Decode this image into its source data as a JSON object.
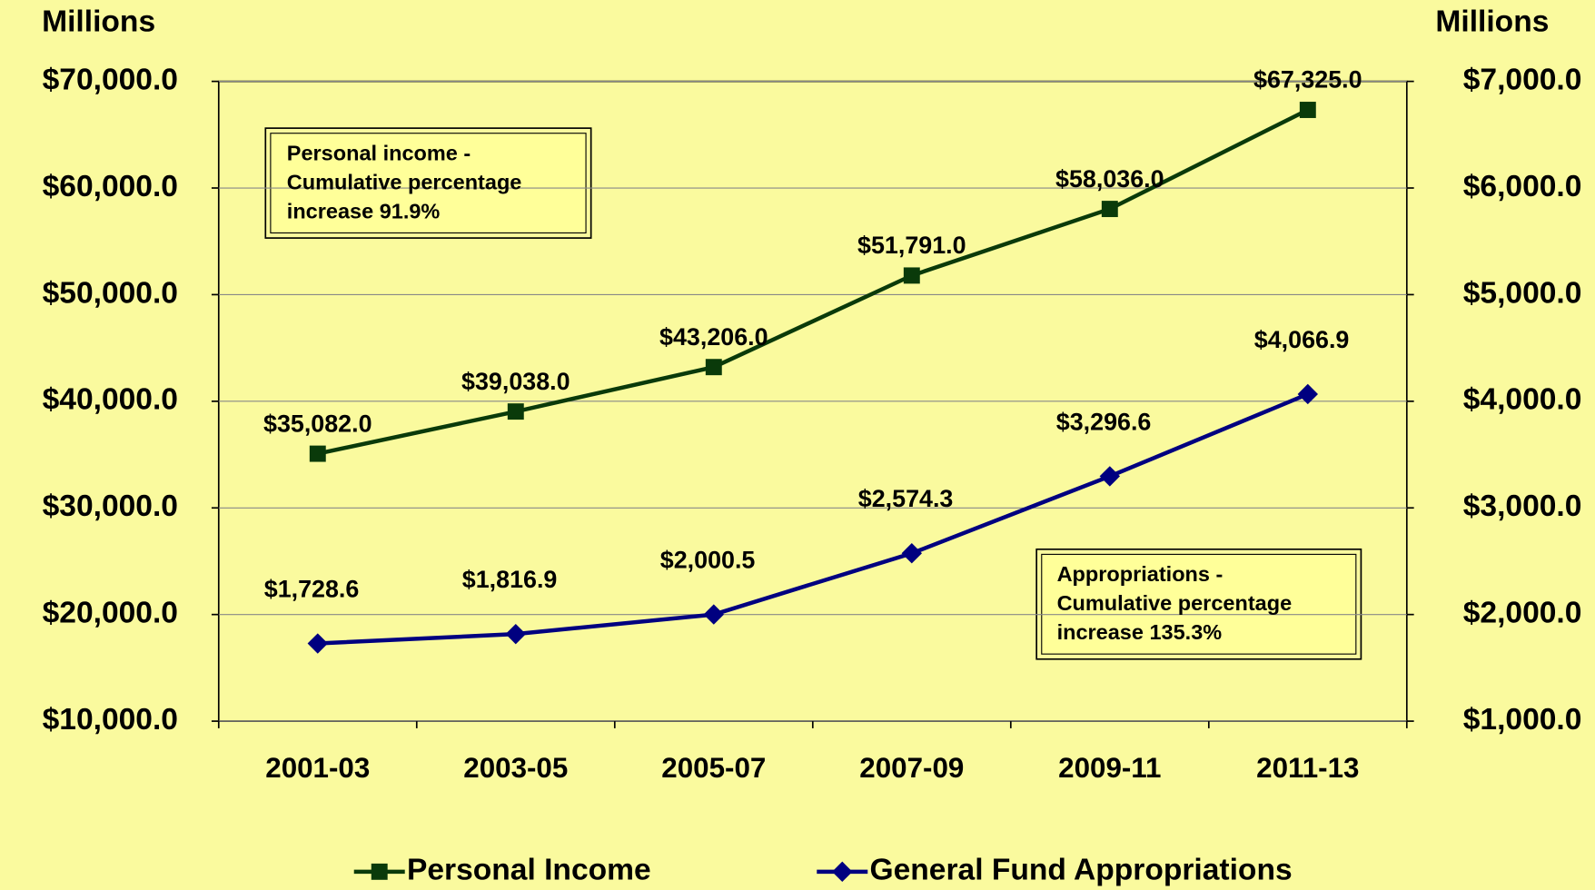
{
  "chart_data": {
    "type": "line",
    "y_label": "Millions",
    "y2_label": "Millions",
    "categories": [
      "2001-03",
      "2003-05",
      "2005-07",
      "2007-09",
      "2009-11",
      "2011-13"
    ],
    "series": [
      {
        "name": "Personal Income",
        "color": "#0a3a0a",
        "marker": "square",
        "axis": "y",
        "values": [
          35082.0,
          39038.0,
          43206.0,
          51791.0,
          58036.0,
          67325.0
        ],
        "value_labels": [
          "$35,082.0",
          "$39,038.0",
          "$43,206.0",
          "$51,791.0",
          "$58,036.0",
          "$67,325.0"
        ]
      },
      {
        "name": "General Fund Appropriations",
        "color": "#000080",
        "marker": "diamond",
        "axis": "y2",
        "values": [
          1728.6,
          1816.9,
          2000.5,
          2574.3,
          3296.6,
          4066.9
        ],
        "value_labels": [
          "$1,728.6",
          "$1,816.9",
          "$2,000.5",
          "$2,574.3",
          "$3,296.6",
          "$4,066.9"
        ]
      }
    ],
    "ylim": [
      10000,
      70000
    ],
    "yticks": [
      {
        "value": 10000,
        "label": "$10,000.0"
      },
      {
        "value": 20000,
        "label": "$20,000.0"
      },
      {
        "value": 30000,
        "label": "$30,000.0"
      },
      {
        "value": 40000,
        "label": "$40,000.0"
      },
      {
        "value": 50000,
        "label": "$50,000.0"
      },
      {
        "value": 60000,
        "label": "$60,000.0"
      },
      {
        "value": 70000,
        "label": "$70,000.0"
      }
    ],
    "y2lim": [
      1000,
      7000
    ],
    "y2ticks": [
      {
        "value": 1000,
        "label": "$1,000.0"
      },
      {
        "value": 2000,
        "label": "$2,000.0"
      },
      {
        "value": 3000,
        "label": "$3,000.0"
      },
      {
        "value": 4000,
        "label": "$4,000.0"
      },
      {
        "value": 5000,
        "label": "$5,000.0"
      },
      {
        "value": 6000,
        "label": "$6,000.0"
      },
      {
        "value": 7000,
        "label": "$7,000.0"
      }
    ],
    "grid": true,
    "legend": "bottom",
    "annotations": [
      {
        "lines": [
          "Personal income -",
          "Cumulative percentage",
          "increase 91.9%"
        ]
      },
      {
        "lines": [
          "Appropriations -",
          "Cumulative percentage",
          "increase 135.3%"
        ]
      }
    ]
  }
}
